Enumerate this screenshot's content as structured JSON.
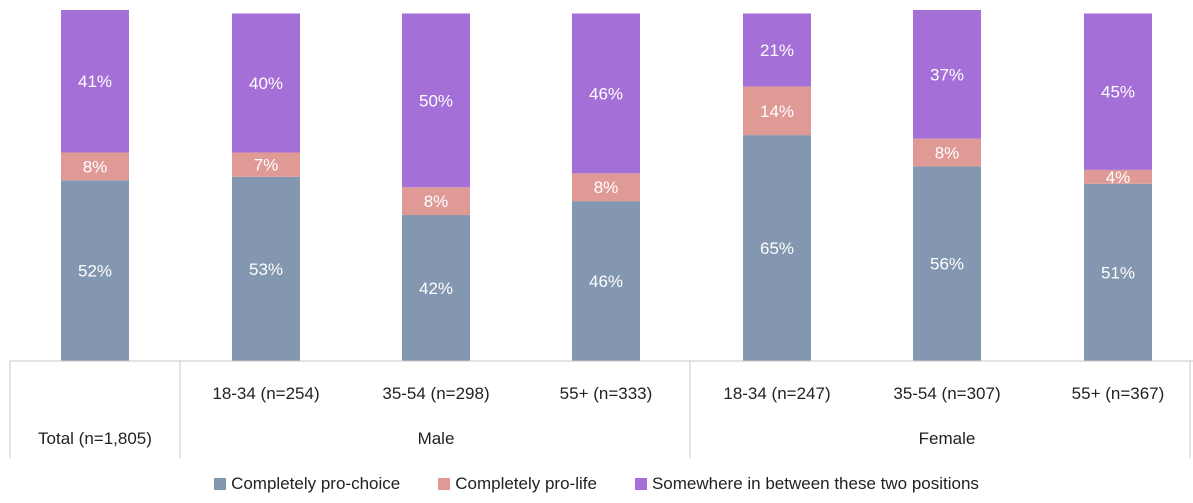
{
  "chart_data": {
    "type": "bar",
    "stacked": true,
    "categories": [
      "Total (n=1,805)",
      "18-34 (n=254)",
      "35-54 (n=298)",
      "55+ (n=333)",
      "18-34 (n=247)",
      "35-54 (n=307)",
      "55+ (n=367)"
    ],
    "groups": [
      {
        "label": "",
        "categories": [
          "Total (n=1,805)"
        ]
      },
      {
        "label": "Male",
        "categories": [
          "18-34 (n=254)",
          "35-54 (n=298)",
          "55+ (n=333)"
        ]
      },
      {
        "label": "Female",
        "categories": [
          "18-34 (n=247)",
          "35-54 (n=307)",
          "55+ (n=367)"
        ]
      }
    ],
    "series": [
      {
        "name": "Completely pro-choice",
        "color": "#8497b0",
        "values": [
          52,
          53,
          42,
          46,
          65,
          56,
          51
        ],
        "labels": [
          "52%",
          "53%",
          "42%",
          "46%",
          "65%",
          "56%",
          "51%"
        ]
      },
      {
        "name": "Completely pro-life",
        "color": "#e09a96",
        "values": [
          8,
          7,
          8,
          8,
          14,
          8,
          4
        ],
        "labels": [
          "8%",
          "7%",
          "8%",
          "8%",
          "14%",
          "8%",
          "4%"
        ]
      },
      {
        "name": "Somewhere in between these two positions",
        "color": "#a46fd6",
        "values": [
          41,
          40,
          50,
          46,
          21,
          37,
          45
        ],
        "labels": [
          "41%",
          "40%",
          "50%",
          "46%",
          "21%",
          "37%",
          "45%"
        ]
      }
    ],
    "ylim": [
      0,
      100
    ],
    "legend_position": "bottom",
    "grid": false
  }
}
